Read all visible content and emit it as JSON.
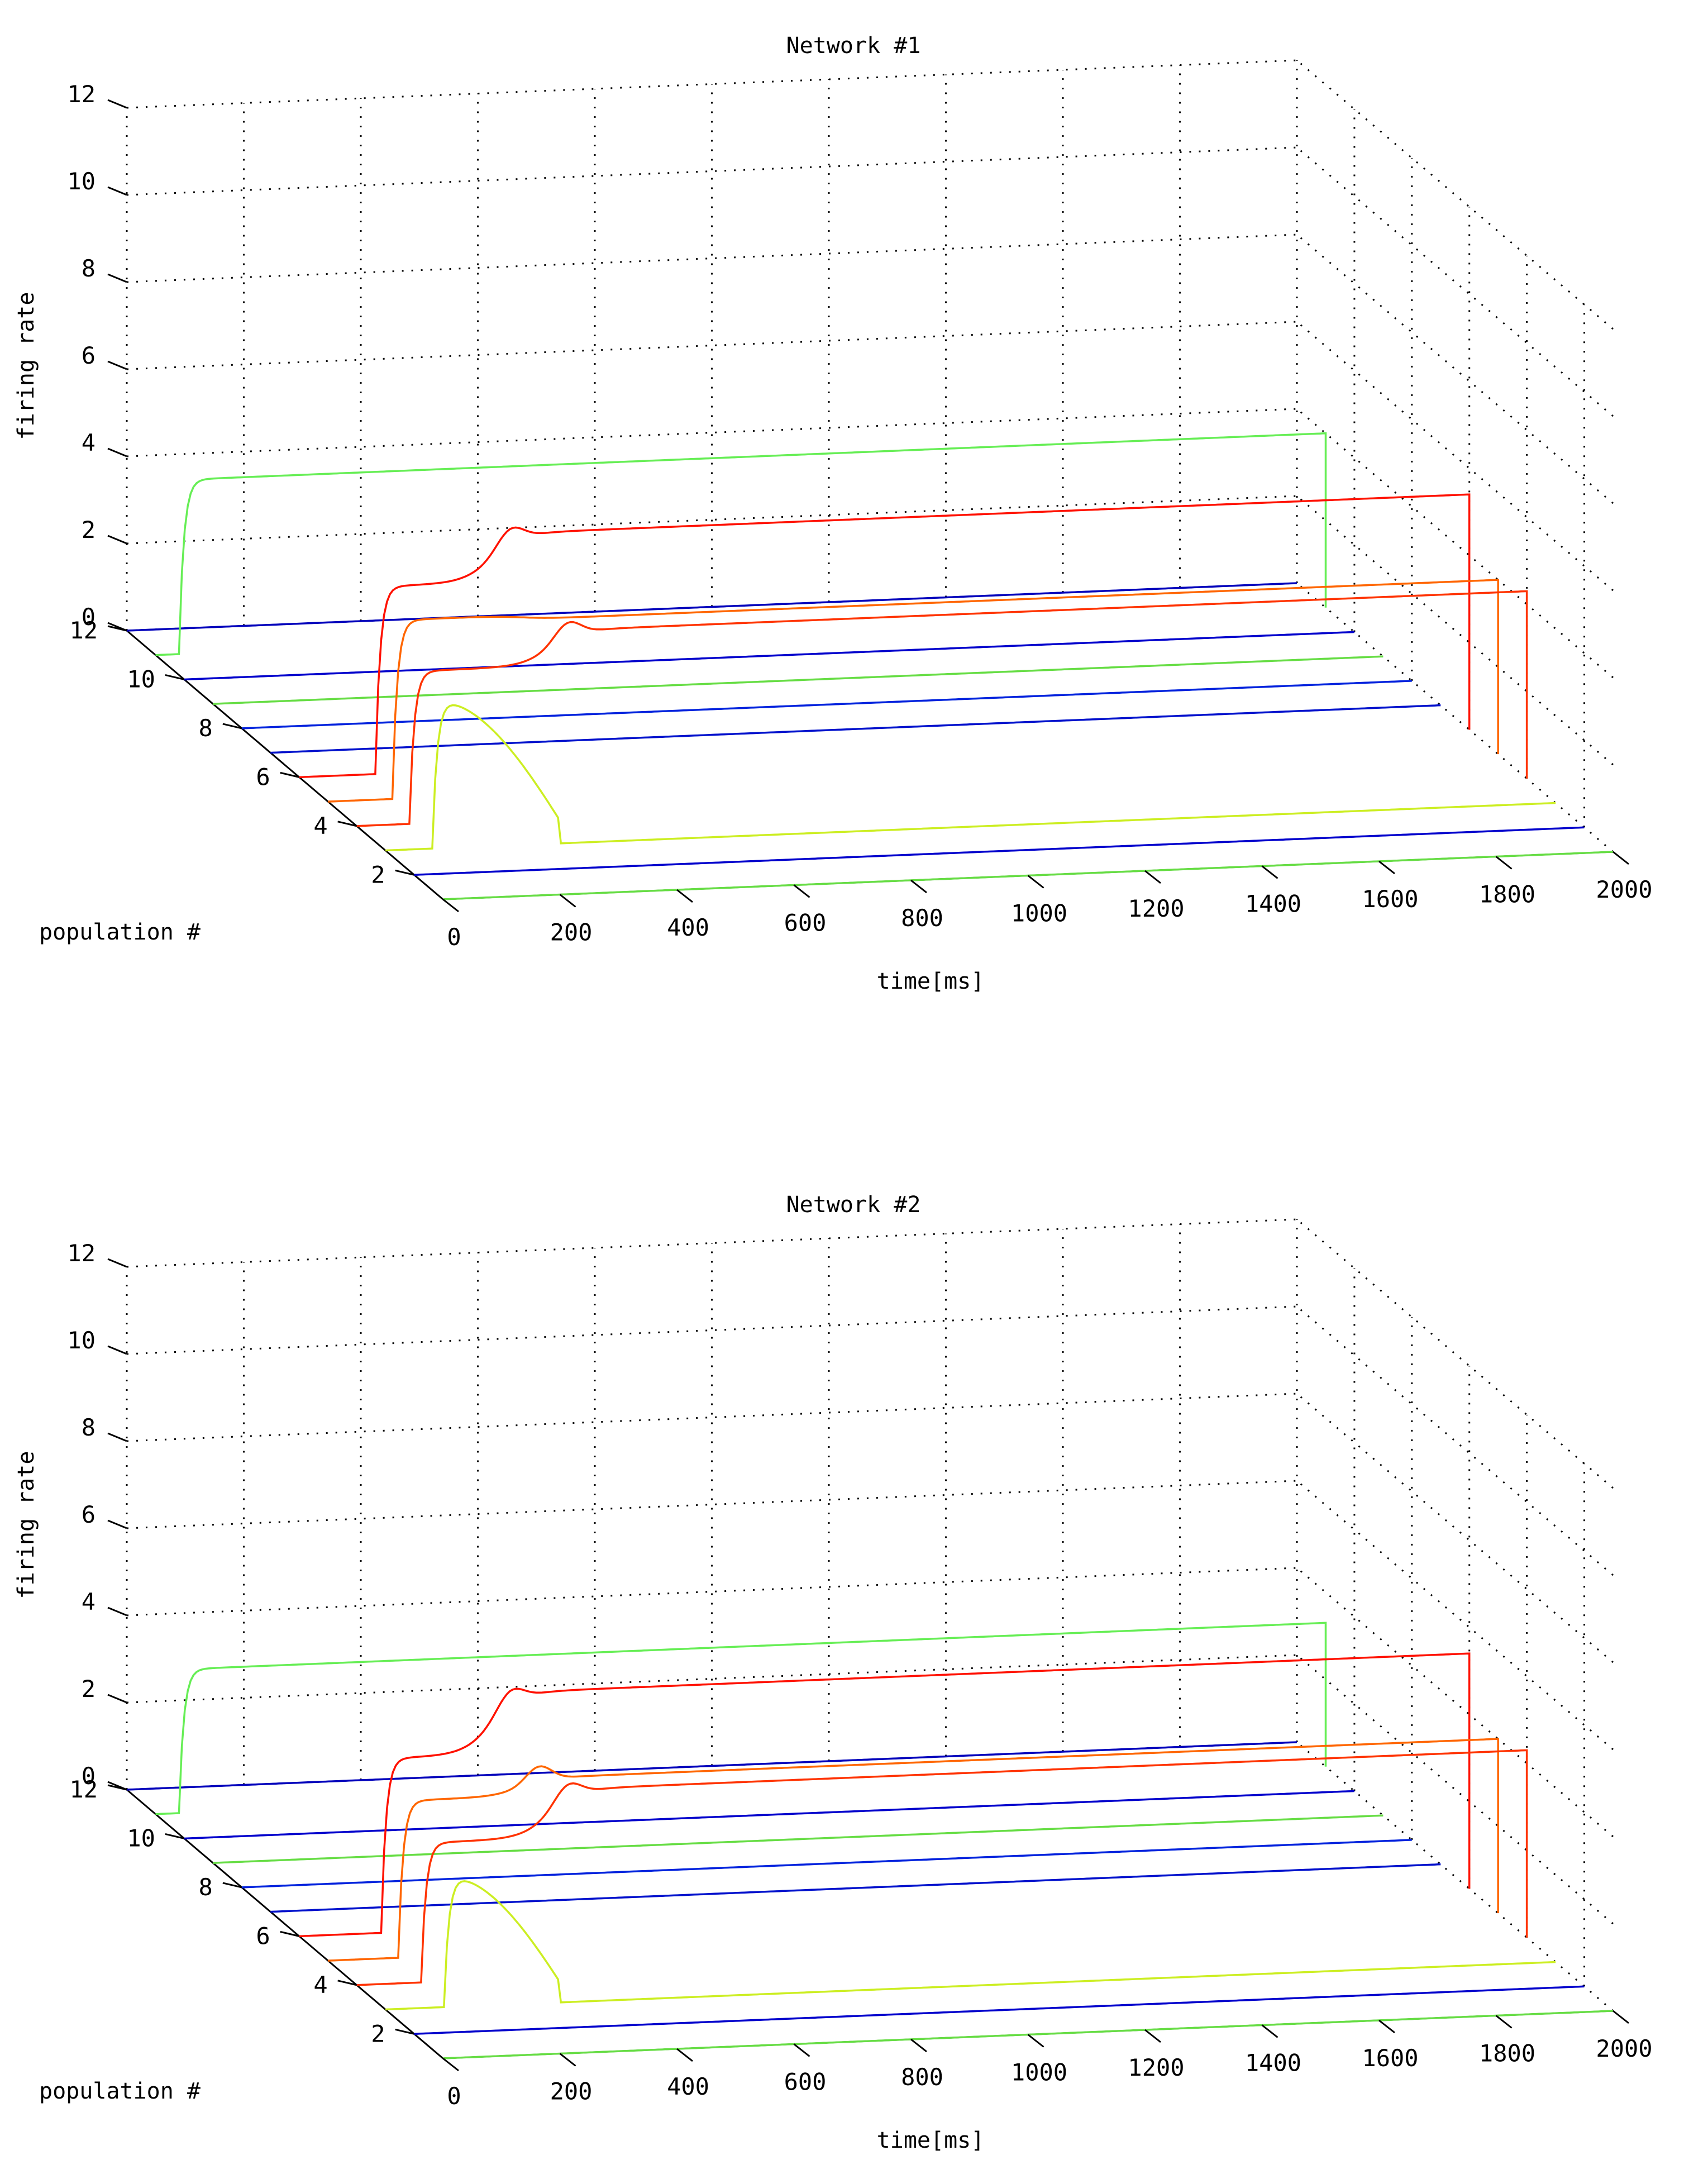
{
  "chart_data": [
    {
      "type": "line",
      "title": "Network #1",
      "xlabel": "time[ms]",
      "ylabel": "population #",
      "zlabel": "firing rate",
      "xlim": [
        0,
        2000
      ],
      "ylim": [
        1,
        12
      ],
      "zlim": [
        0,
        12
      ],
      "x_ticks": [
        "0",
        "200",
        "400",
        "600",
        "800",
        "1000",
        "1200",
        "1400",
        "1600",
        "1800",
        "2000"
      ],
      "y_ticks": [
        "2",
        "4",
        "6",
        "8",
        "10",
        "12"
      ],
      "z_ticks": [
        "0",
        "2",
        "4",
        "6",
        "8",
        "10",
        "12"
      ],
      "grid": true,
      "view": "3d",
      "series": [
        {
          "population": 1,
          "color": "#66dd44",
          "onset": 60,
          "peak": 0,
          "plateau": 0,
          "decay_end": null
        },
        {
          "population": 2,
          "color": "#0000cc",
          "onset": 290,
          "peak": 0,
          "plateau": 0,
          "decay_end": null
        },
        {
          "population": 3,
          "color": "#ccee22",
          "onset": 80,
          "peak": 3.4,
          "plateau": 2.6,
          "decay_end": 300
        },
        {
          "population": 4,
          "color": "#ff3300",
          "onset": 90,
          "peak": 3.5,
          "plateau": 4.3,
          "decay_end": null
        },
        {
          "population": 5,
          "color": "#ff6600",
          "onset": 110,
          "peak": 4.1,
          "plateau": 4.0,
          "decay_end": null
        },
        {
          "population": 6,
          "color": "#ff1100",
          "onset": 130,
          "peak": 4.3,
          "plateau": 5.4,
          "decay_end": null
        },
        {
          "population": 7,
          "color": "#0011cc",
          "onset": 60,
          "peak": 0,
          "plateau": 0,
          "decay_end": null
        },
        {
          "population": 8,
          "color": "#0022dd",
          "onset": 60,
          "peak": 0,
          "plateau": 0,
          "decay_end": null
        },
        {
          "population": 9,
          "color": "#66dd44",
          "onset": 80,
          "peak": 0,
          "plateau": 0,
          "decay_end": null
        },
        {
          "population": 10,
          "color": "#0000cc",
          "onset": 60,
          "peak": 0,
          "plateau": 0,
          "decay_end": null
        },
        {
          "population": 11,
          "color": "#66ee55",
          "onset": 40,
          "peak": 4.0,
          "plateau": 4.0,
          "decay_end": null
        },
        {
          "population": 12,
          "color": "#0000bb",
          "onset": 20,
          "peak": 0,
          "plateau": 0,
          "decay_end": null
        }
      ]
    },
    {
      "type": "line",
      "title": "Network #2",
      "xlabel": "time[ms]",
      "ylabel": "population #",
      "zlabel": "firing rate",
      "xlim": [
        0,
        2000
      ],
      "ylim": [
        1,
        12
      ],
      "zlim": [
        0,
        12
      ],
      "x_ticks": [
        "0",
        "200",
        "400",
        "600",
        "800",
        "1000",
        "1200",
        "1400",
        "1600",
        "1800",
        "2000"
      ],
      "y_ticks": [
        "2",
        "4",
        "6",
        "8",
        "10",
        "12"
      ],
      "z_ticks": [
        "0",
        "2",
        "4",
        "6",
        "8",
        "10",
        "12"
      ],
      "grid": true,
      "view": "3d",
      "series": [
        {
          "population": 1,
          "color": "#66dd44",
          "onset": 60,
          "peak": 0,
          "plateau": 0,
          "decay_end": null
        },
        {
          "population": 2,
          "color": "#0000cc",
          "onset": 290,
          "peak": 0,
          "plateau": 0,
          "decay_end": null
        },
        {
          "population": 3,
          "color": "#ccee22",
          "onset": 100,
          "peak": 3.0,
          "plateau": 2.6,
          "decay_end": 300
        },
        {
          "population": 4,
          "color": "#ff3300",
          "onset": 110,
          "peak": 3.2,
          "plateau": 4.3,
          "decay_end": null
        },
        {
          "population": 5,
          "color": "#ff6600",
          "onset": 120,
          "peak": 3.6,
          "plateau": 4.0,
          "decay_end": null
        },
        {
          "population": 6,
          "color": "#ff1100",
          "onset": 140,
          "peak": 4.0,
          "plateau": 5.4,
          "decay_end": null
        },
        {
          "population": 7,
          "color": "#0011cc",
          "onset": 60,
          "peak": 0,
          "plateau": 0,
          "decay_end": null
        },
        {
          "population": 8,
          "color": "#0022dd",
          "onset": 60,
          "peak": 0,
          "plateau": 0,
          "decay_end": null
        },
        {
          "population": 9,
          "color": "#66dd44",
          "onset": 80,
          "peak": 0,
          "plateau": 0,
          "decay_end": null
        },
        {
          "population": 10,
          "color": "#0000cc",
          "onset": 60,
          "peak": 0,
          "plateau": 0,
          "decay_end": null
        },
        {
          "population": 11,
          "color": "#66ee55",
          "onset": 40,
          "peak": 3.3,
          "plateau": 3.3,
          "decay_end": null
        },
        {
          "population": 12,
          "color": "#0000bb",
          "onset": 20,
          "peak": 0,
          "plateau": 0,
          "decay_end": null
        }
      ]
    }
  ]
}
